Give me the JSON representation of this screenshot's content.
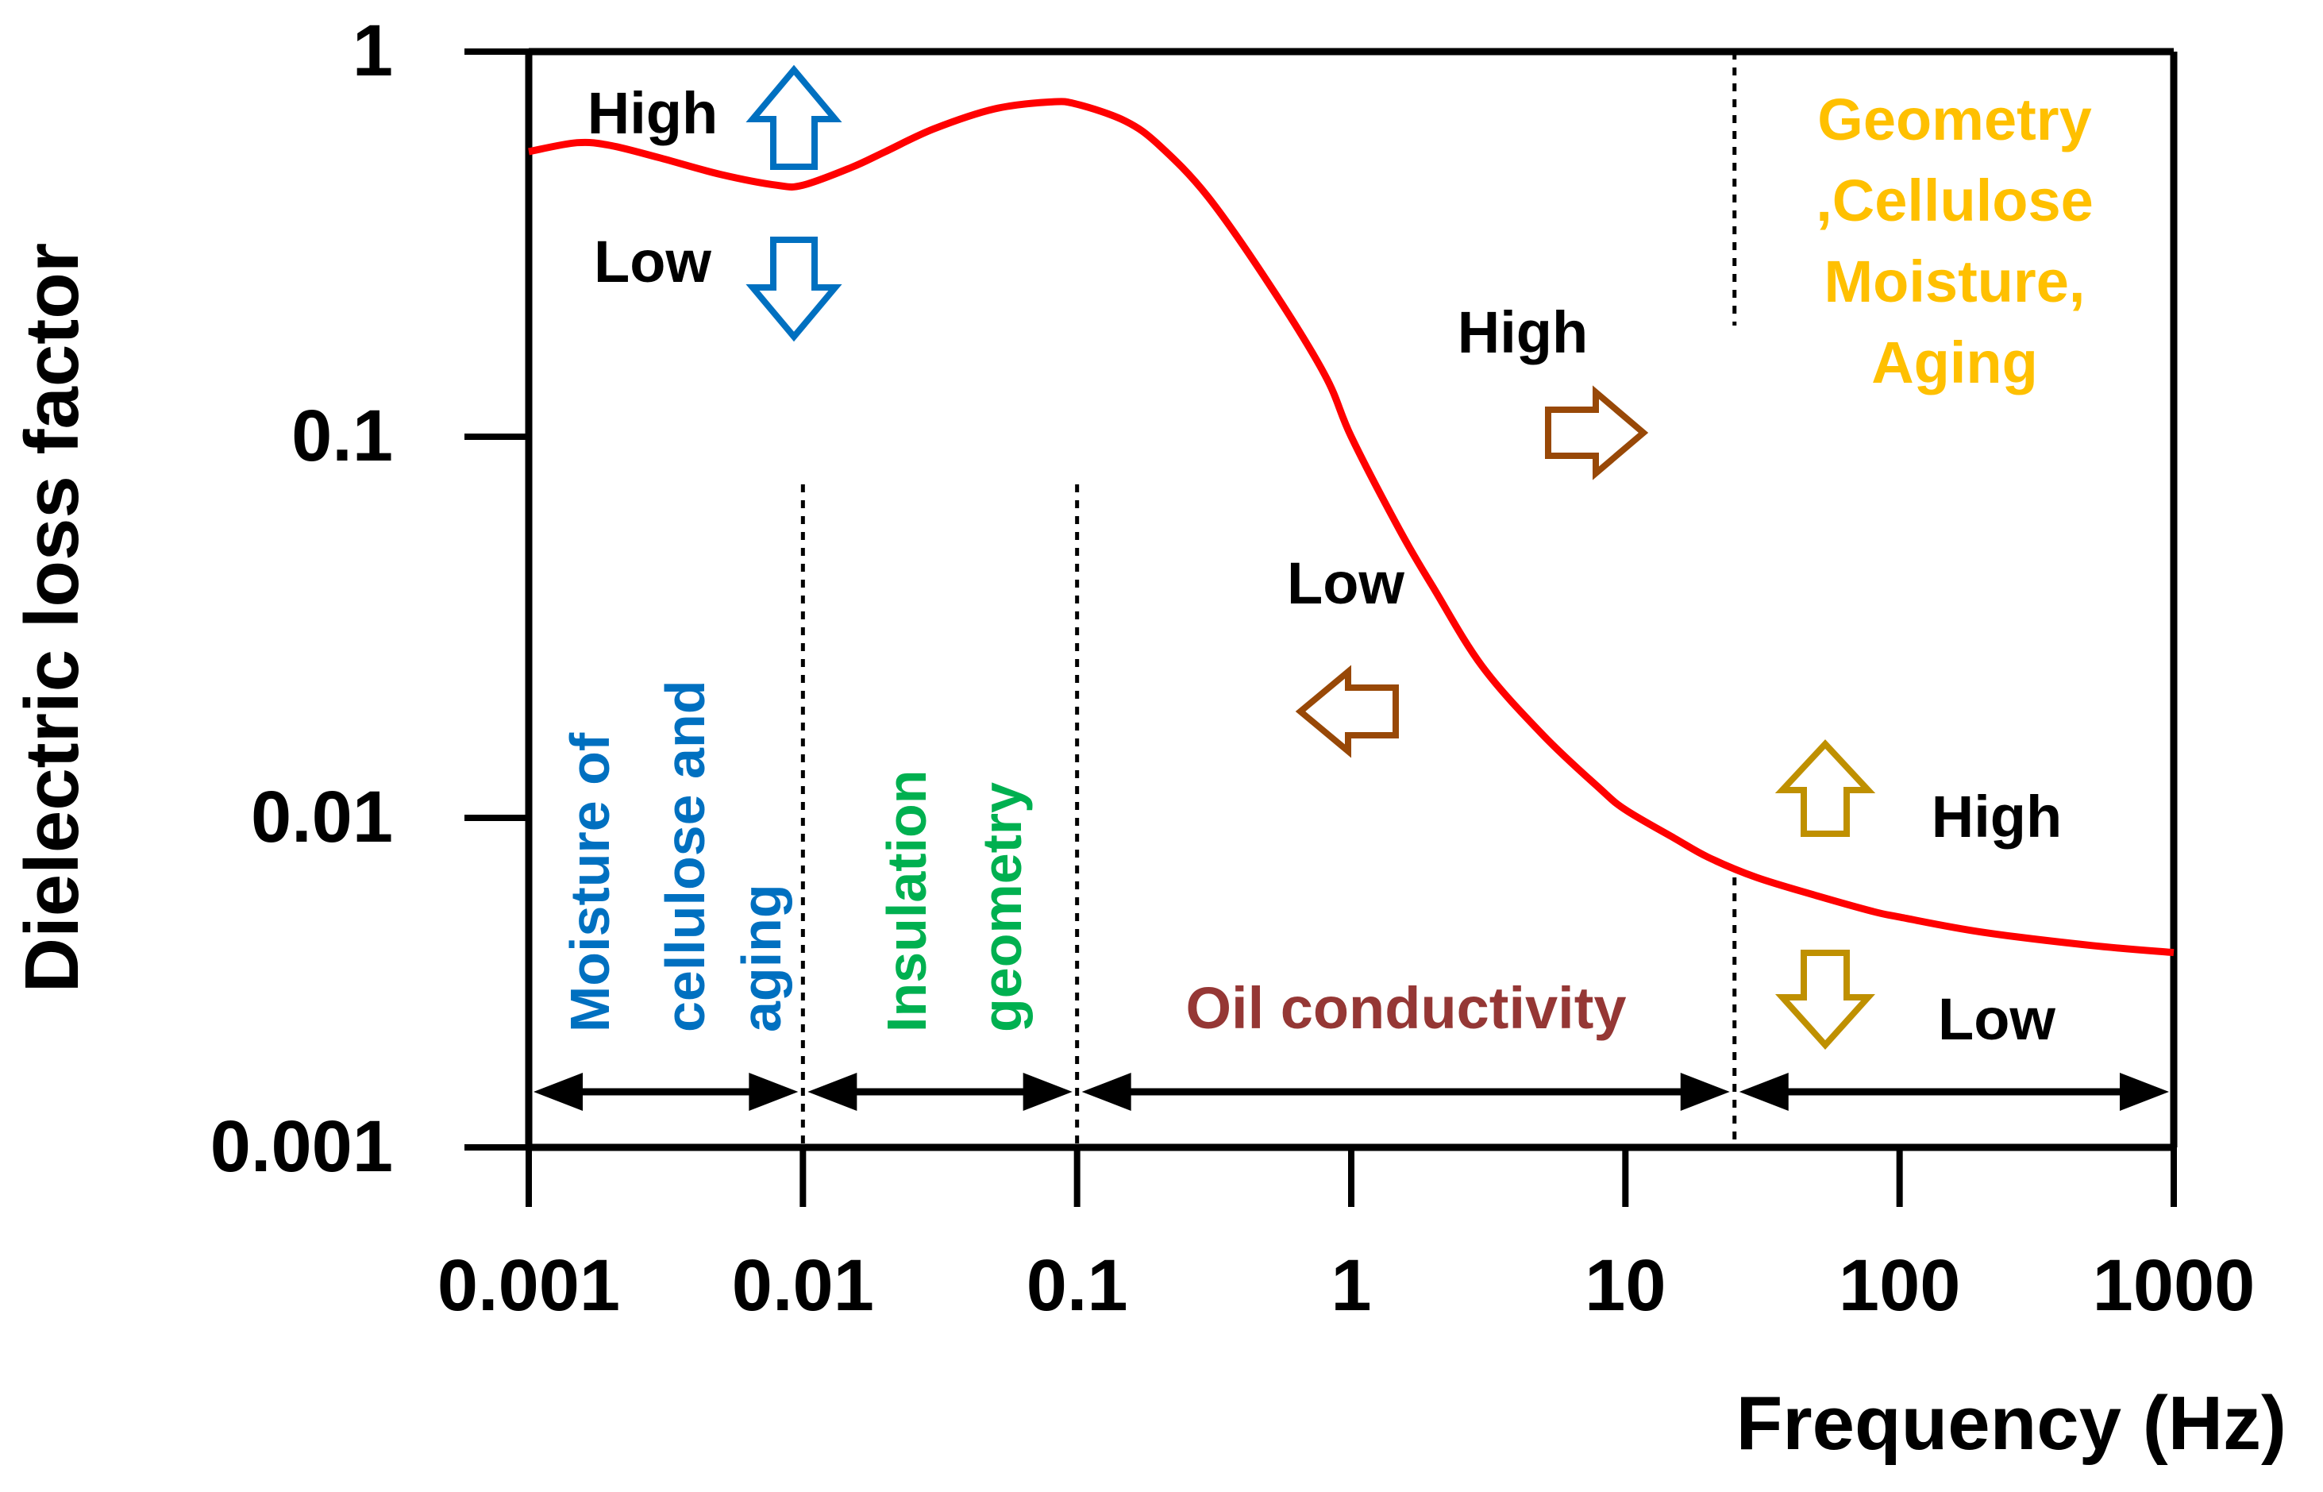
{
  "chart_data": {
    "type": "line",
    "title": "",
    "xlabel": "Frequency (Hz)",
    "ylabel": "Dielectric loss factor",
    "xscale": "log",
    "yscale": "log",
    "xlim": [
      0.001,
      1000
    ],
    "ylim": [
      0.001,
      1
    ],
    "x_ticks": [
      "0.001",
      "0.01",
      "0.1",
      "1",
      "10",
      "100",
      "1000"
    ],
    "y_ticks": [
      "0.001",
      "0.01",
      "0.1",
      "1"
    ],
    "grid": false,
    "legend": "none",
    "series": [
      {
        "name": "Dielectric loss factor",
        "color": "#ff0000",
        "x": [
          0.001,
          0.0015,
          0.002,
          0.003,
          0.005,
          0.008,
          0.01,
          0.015,
          0.02,
          0.03,
          0.05,
          0.08,
          0.1,
          0.15,
          0.2,
          0.3,
          0.5,
          0.8,
          1,
          1.5,
          2,
          3,
          5,
          8,
          10,
          15,
          20,
          30,
          50,
          80,
          100,
          200,
          500,
          1000
        ],
        "y": [
          0.55,
          0.58,
          0.57,
          0.53,
          0.48,
          0.45,
          0.45,
          0.5,
          0.55,
          0.63,
          0.71,
          0.74,
          0.73,
          0.66,
          0.57,
          0.42,
          0.25,
          0.145,
          0.1,
          0.057,
          0.04,
          0.025,
          0.0165,
          0.012,
          0.0105,
          0.0087,
          0.0076,
          0.0066,
          0.0058,
          0.0052,
          0.005,
          0.0045,
          0.0041,
          0.0039
        ]
      }
    ],
    "region_boundaries_x": [
      0.01,
      0.1,
      25
    ],
    "regions": [
      {
        "x_range": [
          0.001,
          0.01
        ],
        "label_lines": [
          "Moisture of",
          "cellulose and",
          "aging"
        ],
        "color": "#0070c0"
      },
      {
        "x_range": [
          0.01,
          0.1
        ],
        "label_lines": [
          "Insulation",
          "geometry"
        ],
        "color": "#00b050"
      },
      {
        "x_range": [
          0.1,
          25
        ],
        "label_lines": [
          "Oil conductivity"
        ],
        "color": "#953735"
      },
      {
        "x_range": [
          25,
          1000
        ],
        "label_lines": [
          "Geometry",
          ",Cellulose",
          "Moisture,",
          "Aging"
        ],
        "color": "#ffc000"
      }
    ],
    "annotations": [
      {
        "text": "High",
        "arrow": "up",
        "color": "#0070c0",
        "region": 0
      },
      {
        "text": "Low",
        "arrow": "down",
        "color": "#0070c0",
        "region": 0
      },
      {
        "text": "High",
        "arrow": "right",
        "color": "#984807",
        "region": 2
      },
      {
        "text": "Low",
        "arrow": "left",
        "color": "#984807",
        "region": 2
      },
      {
        "text": "High",
        "arrow": "up",
        "color": "#bf9000",
        "region": 3
      },
      {
        "text": "Low",
        "arrow": "down",
        "color": "#bf9000",
        "region": 3
      }
    ]
  }
}
